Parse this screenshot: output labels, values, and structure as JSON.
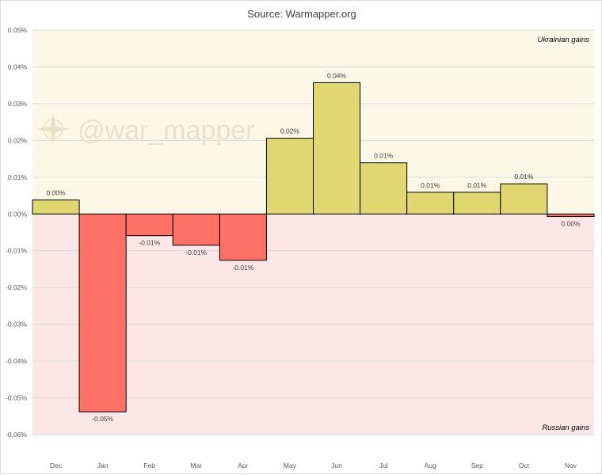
{
  "colors": {
    "positive_bg": "#fbf8e8",
    "negative_bg": "#fde6e6",
    "positive_bar": "#e0d770",
    "negative_bar": "#ff7066",
    "grid": "#d9d9d9"
  },
  "chart_data": {
    "type": "bar",
    "title": "Source: Warmapper.org",
    "categories": [
      "Dec",
      "Jan",
      "Feb",
      "Mar",
      "Apr",
      "May",
      "Jun",
      "Jul",
      "Aug",
      "Sep",
      "Oct",
      "Nov"
    ],
    "values": [
      0.0038,
      -0.0538,
      -0.0059,
      -0.0085,
      -0.0126,
      0.0206,
      0.0357,
      0.0139,
      0.0059,
      0.0059,
      0.0082,
      -0.0007
    ],
    "data_labels": [
      "0.00%",
      "-0.05%",
      "-0.01%",
      "-0.01%",
      "-0.01%",
      "0.02%",
      "0.04%",
      "0.01%",
      "0.01%",
      "0.01%",
      "0.01%",
      "0.00%"
    ],
    "yticks": [
      0.05,
      0.04,
      0.03,
      0.02,
      0.01,
      0.0,
      -0.01,
      -0.02,
      -0.03,
      -0.04,
      -0.05,
      -0.06
    ],
    "ytick_labels": [
      "0.05%",
      "0.04%",
      "0.03%",
      "0.02%",
      "0.01%",
      "0.00%",
      "-0.01%",
      "-0.02%",
      "-0.03%",
      "-0.04%",
      "-0.05%",
      "-0.06%"
    ],
    "ylim": [
      -0.06,
      0.05
    ],
    "xlabel": "",
    "ylabel": "",
    "grid": true,
    "legend": "none",
    "annotations": {
      "positive_region": "Ukrainian gains",
      "negative_region": "Russian gains"
    },
    "watermark": "@war_mapper"
  }
}
